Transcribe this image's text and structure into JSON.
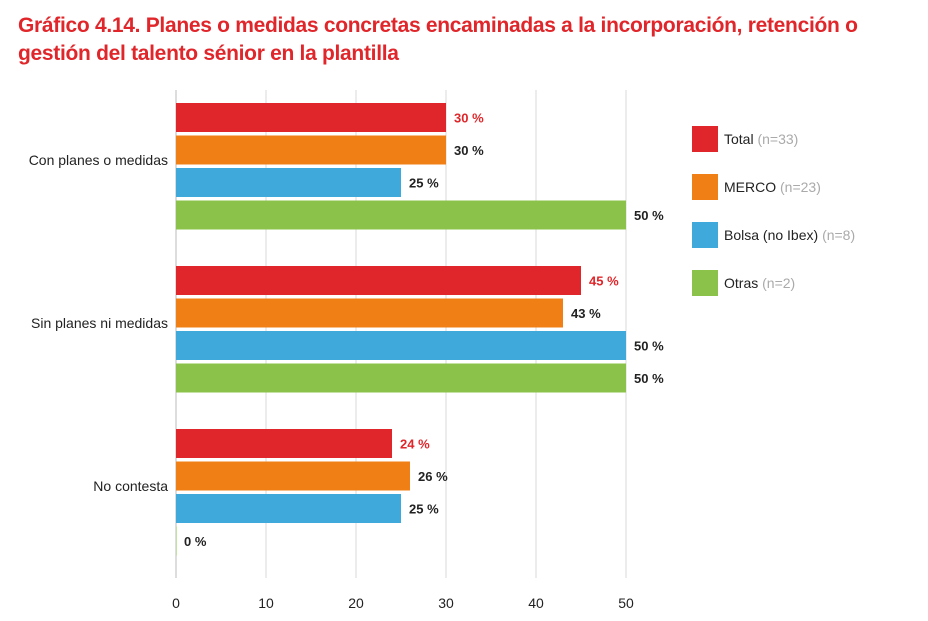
{
  "chart_data": {
    "type": "bar",
    "orientation": "horizontal",
    "title": "Gráfico 4.14. Planes o medidas concretas encaminadas a la incorporación, retención o gestión del talento sénior en la plantilla",
    "categories": [
      "Con planes o medidas",
      "Sin planes ni medidas",
      "No contesta"
    ],
    "series": [
      {
        "name": "Total",
        "n": "(n=33)",
        "color": "#e0262a",
        "label_color": "#e0262a",
        "values": [
          30,
          45,
          24
        ]
      },
      {
        "name": "MERCO",
        "n": "(n=23)",
        "color": "#f07f16",
        "label_color": "#222222",
        "values": [
          30,
          43,
          26
        ]
      },
      {
        "name": "Bolsa (no Ibex)",
        "n": "(n=8)",
        "color": "#3fa9dc",
        "label_color": "#222222",
        "values": [
          25,
          50,
          25
        ]
      },
      {
        "name": "Otras",
        "n": "(n=2)",
        "color": "#8bc34a",
        "label_color": "#222222",
        "values": [
          50,
          50,
          0
        ]
      }
    ],
    "xlim": [
      0,
      50
    ],
    "xticks": [
      0,
      10,
      20,
      30,
      40,
      50
    ],
    "value_suffix": " %",
    "grid": true,
    "legend": "right"
  }
}
